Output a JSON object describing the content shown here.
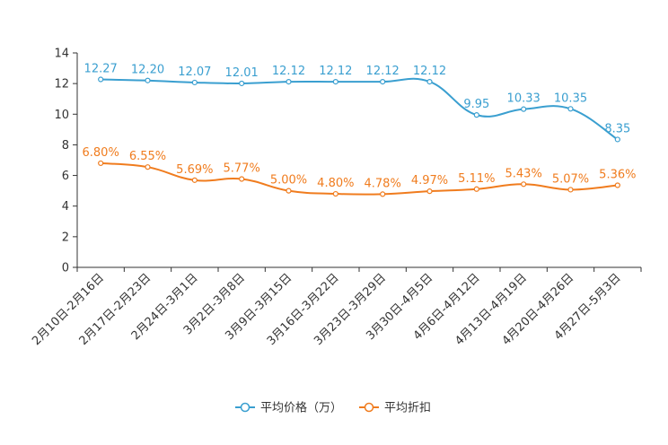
{
  "chart_data": {
    "type": "line",
    "title": "",
    "xlabel": "",
    "ylabel": "",
    "ylim": [
      0,
      14
    ],
    "yticks": [
      0,
      2,
      4,
      6,
      8,
      10,
      12,
      14
    ],
    "categories": [
      "2月10日-2月16日",
      "2月17日-2月23日",
      "2月24日-3月1日",
      "3月2日-3月8日",
      "3月9日-3月15日",
      "3月16日-3月22日",
      "3月23日-3月29日",
      "3月30日-4月5日",
      "4月6日-4月12日",
      "4月13日-4月19日",
      "4月20日-4月26日",
      "4月27日-5月3日"
    ],
    "series": [
      {
        "name": "平均价格（万）",
        "color": "#3a9fd0",
        "values": [
          12.27,
          12.2,
          12.07,
          12.01,
          12.12,
          12.12,
          12.12,
          12.12,
          9.95,
          10.33,
          10.35,
          8.35
        ],
        "labels": [
          "12.27",
          "12.20",
          "12.07",
          "12.01",
          "12.12",
          "12.12",
          "12.12",
          "12.12",
          "9.95",
          "10.33",
          "10.35",
          "8.35"
        ]
      },
      {
        "name": "平均折扣",
        "color": "#f07c1e",
        "values": [
          6.8,
          6.55,
          5.69,
          5.77,
          5.0,
          4.8,
          4.78,
          4.97,
          5.11,
          5.43,
          5.07,
          5.36
        ],
        "labels": [
          "6.80%",
          "6.55%",
          "5.69%",
          "5.77%",
          "5.00%",
          "4.80%",
          "4.78%",
          "4.97%",
          "5.11%",
          "5.43%",
          "5.07%",
          "5.36%"
        ]
      }
    ],
    "legend_position": "bottom-center",
    "grid": false
  }
}
